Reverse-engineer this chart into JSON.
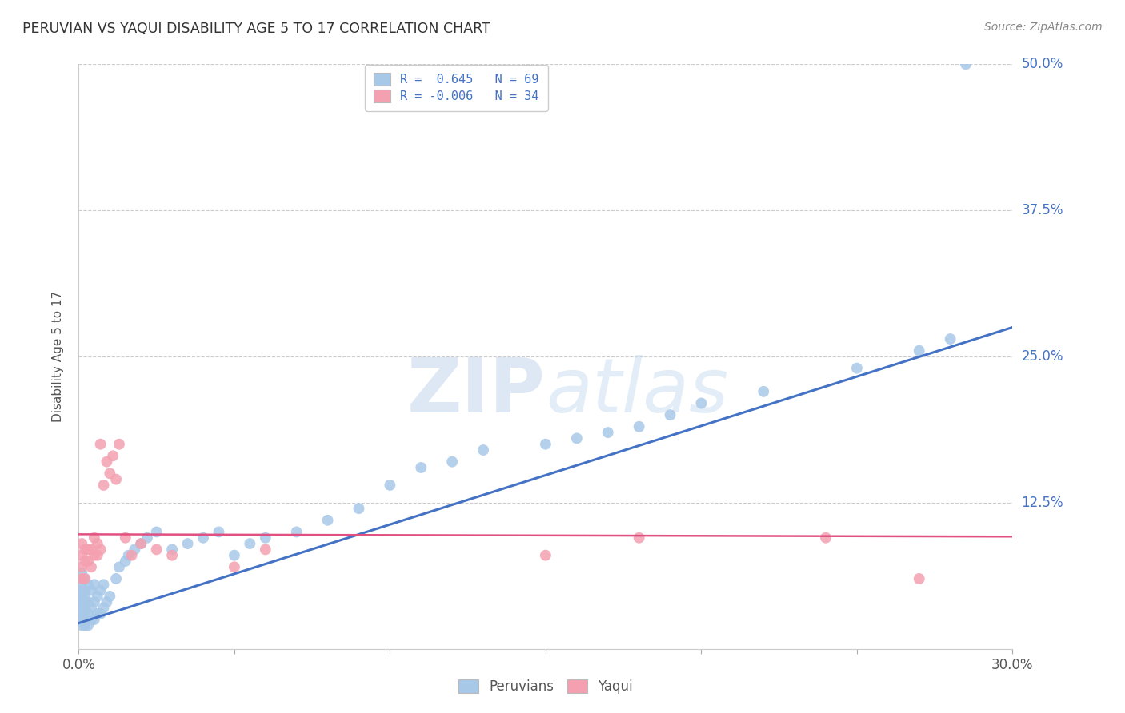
{
  "title": "PERUVIAN VS YAQUI DISABILITY AGE 5 TO 17 CORRELATION CHART",
  "source": "Source: ZipAtlas.com",
  "ylabel_label": "Disability Age 5 to 17",
  "xmin": 0.0,
  "xmax": 0.3,
  "ymin": 0.0,
  "ymax": 0.5,
  "xticks": [
    0.0,
    0.05,
    0.1,
    0.15,
    0.2,
    0.25,
    0.3
  ],
  "xtick_labels": [
    "0.0%",
    "",
    "",
    "",
    "",
    "",
    "30.0%"
  ],
  "yticks": [
    0.0,
    0.125,
    0.25,
    0.375,
    0.5
  ],
  "ytick_right_labels": [
    "",
    "12.5%",
    "25.0%",
    "37.5%",
    "50.0%"
  ],
  "blue_R": 0.645,
  "blue_N": 69,
  "pink_R": -0.006,
  "pink_N": 34,
  "blue_color": "#a8c8e8",
  "pink_color": "#f4a0b0",
  "blue_line_color": "#4472c4",
  "pink_line_color": "#e05080",
  "tick_label_color": "#4472c4",
  "legend_label_blue": "Peruvians",
  "legend_label_pink": "Yaqui",
  "background_color": "#ffffff",
  "grid_color": "#cccccc",
  "blue_trendline_x": [
    0.0,
    0.3
  ],
  "blue_trendline_y": [
    0.022,
    0.275
  ],
  "pink_trendline_x": [
    0.0,
    0.3
  ],
  "pink_trendline_y": [
    0.098,
    0.096
  ],
  "blue_scatter_x": [
    0.001,
    0.001,
    0.001,
    0.001,
    0.001,
    0.001,
    0.001,
    0.001,
    0.001,
    0.001,
    0.002,
    0.002,
    0.002,
    0.002,
    0.002,
    0.002,
    0.002,
    0.002,
    0.003,
    0.003,
    0.003,
    0.003,
    0.004,
    0.004,
    0.004,
    0.005,
    0.005,
    0.005,
    0.006,
    0.006,
    0.007,
    0.007,
    0.008,
    0.008,
    0.009,
    0.01,
    0.012,
    0.013,
    0.015,
    0.016,
    0.018,
    0.02,
    0.022,
    0.025,
    0.03,
    0.035,
    0.04,
    0.045,
    0.05,
    0.055,
    0.06,
    0.07,
    0.08,
    0.09,
    0.1,
    0.11,
    0.12,
    0.13,
    0.15,
    0.16,
    0.17,
    0.18,
    0.19,
    0.2,
    0.22,
    0.25,
    0.27,
    0.28,
    0.285
  ],
  "blue_scatter_y": [
    0.02,
    0.025,
    0.03,
    0.035,
    0.04,
    0.045,
    0.05,
    0.055,
    0.06,
    0.065,
    0.02,
    0.025,
    0.03,
    0.035,
    0.04,
    0.045,
    0.05,
    0.06,
    0.02,
    0.03,
    0.04,
    0.055,
    0.025,
    0.035,
    0.05,
    0.025,
    0.04,
    0.055,
    0.03,
    0.045,
    0.03,
    0.05,
    0.035,
    0.055,
    0.04,
    0.045,
    0.06,
    0.07,
    0.075,
    0.08,
    0.085,
    0.09,
    0.095,
    0.1,
    0.085,
    0.09,
    0.095,
    0.1,
    0.08,
    0.09,
    0.095,
    0.1,
    0.11,
    0.12,
    0.14,
    0.155,
    0.16,
    0.17,
    0.175,
    0.18,
    0.185,
    0.19,
    0.2,
    0.21,
    0.22,
    0.24,
    0.255,
    0.265,
    0.5
  ],
  "pink_scatter_x": [
    0.001,
    0.001,
    0.001,
    0.001,
    0.002,
    0.002,
    0.002,
    0.003,
    0.003,
    0.004,
    0.004,
    0.005,
    0.005,
    0.006,
    0.006,
    0.007,
    0.007,
    0.008,
    0.009,
    0.01,
    0.011,
    0.012,
    0.013,
    0.015,
    0.017,
    0.02,
    0.025,
    0.03,
    0.05,
    0.06,
    0.15,
    0.18,
    0.24,
    0.27
  ],
  "pink_scatter_y": [
    0.06,
    0.07,
    0.08,
    0.09,
    0.06,
    0.075,
    0.085,
    0.075,
    0.085,
    0.07,
    0.085,
    0.08,
    0.095,
    0.08,
    0.09,
    0.085,
    0.175,
    0.14,
    0.16,
    0.15,
    0.165,
    0.145,
    0.175,
    0.095,
    0.08,
    0.09,
    0.085,
    0.08,
    0.07,
    0.085,
    0.08,
    0.095,
    0.095,
    0.06
  ]
}
